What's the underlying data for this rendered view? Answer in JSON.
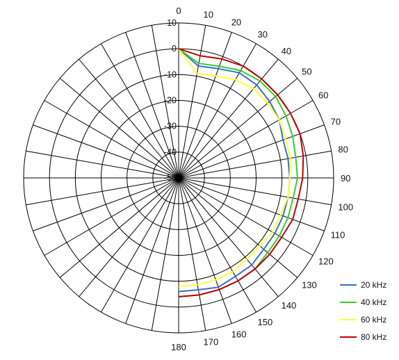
{
  "chart_data": {
    "type": "line",
    "subtype": "polar",
    "title": "",
    "angle_unit": "degrees",
    "angle_direction": "clockwise",
    "angle_zero": "top",
    "angle_ticks": [
      0,
      10,
      20,
      30,
      40,
      50,
      60,
      70,
      80,
      90,
      100,
      110,
      120,
      130,
      140,
      150,
      160,
      170,
      180
    ],
    "radial_ticks": [
      10,
      0,
      -10,
      -20,
      -30,
      -40,
      -50
    ],
    "rlim": [
      -50,
      10
    ],
    "grid": true,
    "legend_position": "bottom-right",
    "series": [
      {
        "name": "20 kHz",
        "color": "#3A6FC4",
        "theta": [
          0,
          10,
          20,
          30,
          40,
          50,
          60,
          70,
          80,
          90,
          100,
          110,
          120,
          130,
          140,
          150,
          160,
          170,
          180
        ],
        "r": [
          0,
          -6,
          -5,
          -3,
          -3,
          -4,
          -5,
          -7,
          -7,
          -7,
          -7,
          -7,
          -7,
          -7,
          -6,
          -6,
          -5,
          -6,
          -6
        ]
      },
      {
        "name": "40 kHz",
        "color": "#33CC33",
        "theta": [
          0,
          10,
          20,
          30,
          40,
          50,
          60,
          70,
          80,
          90,
          100,
          110,
          120,
          130,
          140,
          150,
          160,
          170,
          180
        ],
        "r": [
          0,
          -5,
          -4,
          -2,
          -1,
          -1,
          -2,
          -3,
          -4,
          -4,
          -5,
          -5,
          -5,
          -5,
          -4,
          -4,
          -4,
          -4,
          -4
        ]
      },
      {
        "name": "60 kHz",
        "color": "#FFFF33",
        "theta": [
          0,
          10,
          20,
          30,
          40,
          50,
          60,
          70,
          80,
          90,
          100,
          110,
          120,
          130,
          140,
          150,
          160,
          170,
          180
        ],
        "r": [
          0,
          -9,
          -8,
          -6,
          -5,
          -5,
          -5,
          -6,
          -6,
          -7,
          -7,
          -8,
          -8,
          -9,
          -9,
          -8,
          -8,
          -8,
          -8
        ]
      },
      {
        "name": "80 kHz",
        "color": "#C00000",
        "theta": [
          0,
          10,
          20,
          30,
          40,
          50,
          60,
          70,
          80,
          90,
          100,
          110,
          120,
          130,
          140,
          150,
          160,
          170,
          180
        ],
        "r": [
          0,
          -2,
          -1,
          0,
          0,
          0,
          0,
          0,
          -1,
          -2,
          -3,
          -3,
          -4,
          -4,
          -4,
          -4,
          -4,
          -4,
          -4
        ]
      }
    ]
  }
}
